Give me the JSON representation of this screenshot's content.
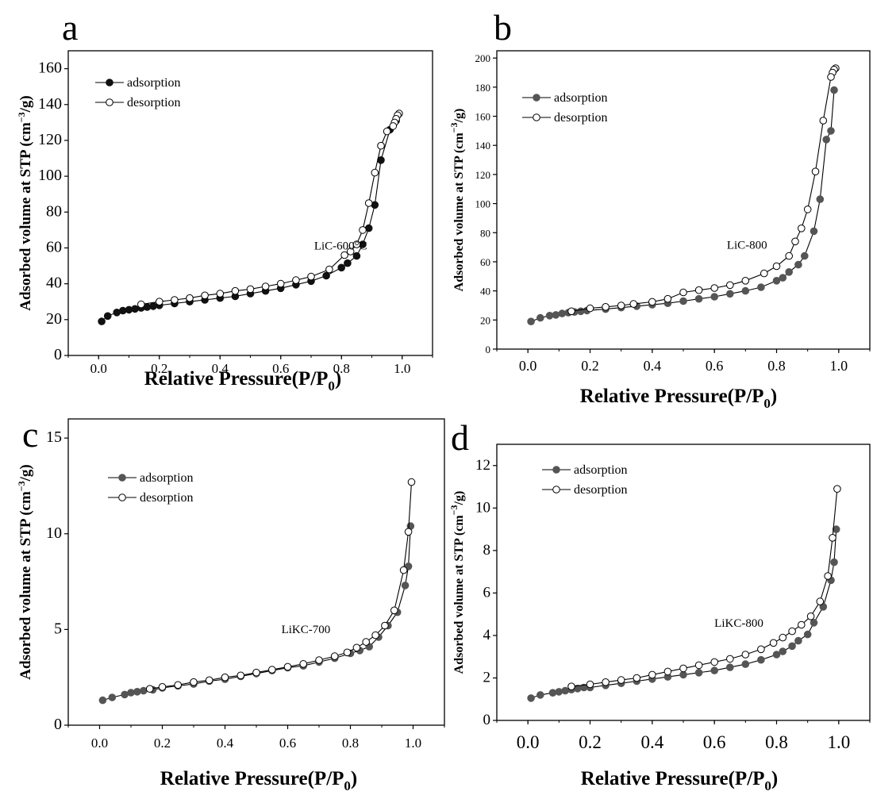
{
  "chart_data": [
    {
      "panel": "a",
      "type": "line",
      "xlabel_main": "Relative Pressure(P/P",
      "xlabel_sub": "0",
      "xlabel_end": ")",
      "ylabel_main": "Adsorbed volume at STP (cm",
      "ylabel_sup": "−3",
      "ylabel_end": "/g)",
      "xlim": [
        -0.1,
        1.1
      ],
      "ylim": [
        0,
        170
      ],
      "xticks": [
        0.0,
        0.2,
        0.4,
        0.6,
        0.8,
        1.0
      ],
      "yticks": [
        0,
        20,
        40,
        60,
        80,
        100,
        120,
        140,
        160
      ],
      "annotation": {
        "text": "LiC-600°C",
        "x": 0.71,
        "y": 59
      },
      "legend_position": "top-left",
      "adsorption_color": "#111111",
      "series": [
        {
          "name": "adsorption",
          "marker": "filled",
          "x": [
            0.01,
            0.03,
            0.06,
            0.08,
            0.1,
            0.12,
            0.14,
            0.16,
            0.18,
            0.2,
            0.25,
            0.3,
            0.35,
            0.4,
            0.45,
            0.5,
            0.55,
            0.6,
            0.65,
            0.7,
            0.75,
            0.8,
            0.82,
            0.85,
            0.87,
            0.89,
            0.91,
            0.93,
            0.96,
            0.98
          ],
          "y": [
            19,
            22,
            24,
            25,
            25.5,
            26,
            26.5,
            27,
            27.5,
            28,
            29,
            30,
            31,
            32,
            33,
            34.5,
            36,
            37.5,
            39.5,
            41.5,
            44.5,
            49,
            51.5,
            55.5,
            62,
            71,
            84,
            109,
            126,
            131
          ]
        },
        {
          "name": "desorption",
          "marker": "open",
          "x": [
            0.99,
            0.985,
            0.98,
            0.975,
            0.97,
            0.95,
            0.93,
            0.91,
            0.89,
            0.87,
            0.85,
            0.83,
            0.81,
            0.76,
            0.7,
            0.65,
            0.6,
            0.55,
            0.5,
            0.45,
            0.4,
            0.35,
            0.3,
            0.25,
            0.2,
            0.14
          ],
          "y": [
            135,
            134,
            132,
            130,
            128,
            125,
            117,
            102,
            85,
            70,
            62,
            58,
            56,
            48,
            44,
            42,
            40,
            38.5,
            37,
            36,
            34.5,
            33.5,
            32,
            31,
            30,
            28.5
          ]
        }
      ]
    },
    {
      "panel": "b",
      "type": "line",
      "xlabel_main": "Relative Pressure(P/P",
      "xlabel_sub": "0",
      "xlabel_end": ")",
      "ylabel_main": "Adsorbed volume at STP (cm",
      "ylabel_sup": "−3",
      "ylabel_end": "/g)",
      "xlim": [
        -0.1,
        1.1
      ],
      "ylim": [
        0,
        205
      ],
      "xticks": [
        0.0,
        0.2,
        0.4,
        0.6,
        0.8,
        1.0
      ],
      "yticks": [
        0,
        20,
        40,
        60,
        80,
        100,
        120,
        140,
        160,
        180,
        200
      ],
      "annotation": {
        "text": "LiC-800",
        "x": 0.64,
        "y": 69
      },
      "legend_position": "top-left",
      "adsorption_color": "#555555",
      "series": [
        {
          "name": "adsorption",
          "marker": "filled",
          "x": [
            0.01,
            0.04,
            0.07,
            0.09,
            0.11,
            0.13,
            0.15,
            0.17,
            0.19,
            0.25,
            0.3,
            0.35,
            0.4,
            0.45,
            0.5,
            0.55,
            0.6,
            0.65,
            0.7,
            0.75,
            0.8,
            0.82,
            0.84,
            0.87,
            0.89,
            0.92,
            0.94,
            0.96,
            0.975,
            0.985
          ],
          "y": [
            19,
            21.5,
            23,
            23.5,
            24.5,
            25,
            25.5,
            26,
            26.5,
            27.5,
            28.5,
            29.5,
            30.5,
            31.5,
            33,
            34.5,
            36,
            38,
            40,
            42.5,
            47,
            49,
            53,
            58,
            64,
            81,
            103,
            144,
            150,
            178
          ]
        },
        {
          "name": "desorption",
          "marker": "open",
          "x": [
            0.99,
            0.985,
            0.98,
            0.975,
            0.95,
            0.925,
            0.9,
            0.88,
            0.86,
            0.84,
            0.8,
            0.76,
            0.7,
            0.65,
            0.6,
            0.55,
            0.5,
            0.45,
            0.4,
            0.34,
            0.3,
            0.25,
            0.2,
            0.14
          ],
          "y": [
            193,
            192,
            190,
            187,
            157,
            122,
            96,
            83,
            74,
            64,
            57,
            52,
            47,
            44,
            42,
            40.5,
            39,
            34.5,
            32.5,
            31,
            30,
            29,
            28,
            26
          ]
        }
      ]
    },
    {
      "panel": "c",
      "type": "line",
      "xlabel_main": "Relative Pressure(P/P",
      "xlabel_sub": "0",
      "xlabel_end": ")",
      "ylabel_main": "Adsorbed volume at STP (cm",
      "ylabel_sup": "−3",
      "ylabel_end": "/g)",
      "xlim": [
        -0.1,
        1.1
      ],
      "ylim": [
        0,
        16
      ],
      "xticks": [
        0.0,
        0.2,
        0.4,
        0.6,
        0.8,
        1.0
      ],
      "yticks": [
        0,
        5,
        10,
        15
      ],
      "annotation": {
        "text": "LiKC-700",
        "x": 0.58,
        "y": 4.8
      },
      "legend_position": "top-left",
      "adsorption_color": "#555555",
      "series": [
        {
          "name": "adsorption",
          "marker": "filled",
          "x": [
            0.01,
            0.04,
            0.08,
            0.1,
            0.12,
            0.14,
            0.17,
            0.2,
            0.25,
            0.3,
            0.35,
            0.4,
            0.45,
            0.5,
            0.55,
            0.6,
            0.65,
            0.7,
            0.75,
            0.8,
            0.83,
            0.86,
            0.89,
            0.92,
            0.95,
            0.975,
            0.985,
            0.992
          ],
          "y": [
            1.3,
            1.45,
            1.6,
            1.7,
            1.75,
            1.8,
            1.85,
            1.95,
            2.05,
            2.15,
            2.3,
            2.4,
            2.55,
            2.7,
            2.85,
            3.0,
            3.1,
            3.3,
            3.5,
            3.75,
            3.9,
            4.1,
            4.6,
            5.2,
            5.9,
            7.3,
            8.3,
            10.4
          ]
        },
        {
          "name": "desorption",
          "marker": "open",
          "x": [
            0.995,
            0.985,
            0.97,
            0.94,
            0.91,
            0.88,
            0.85,
            0.82,
            0.79,
            0.75,
            0.7,
            0.65,
            0.6,
            0.55,
            0.5,
            0.45,
            0.4,
            0.35,
            0.3,
            0.25,
            0.2,
            0.16
          ],
          "y": [
            12.7,
            10.1,
            8.1,
            6.0,
            5.2,
            4.7,
            4.35,
            4.05,
            3.8,
            3.6,
            3.4,
            3.2,
            3.05,
            2.9,
            2.75,
            2.6,
            2.5,
            2.35,
            2.25,
            2.1,
            2.0,
            1.9
          ]
        }
      ]
    },
    {
      "panel": "d",
      "type": "line",
      "xlabel_main": "Relative Pressure(P/P",
      "xlabel_sub": "0",
      "xlabel_end": ")",
      "ylabel_main": "Adsorbed volume at STP (cm",
      "ylabel_sup": "−3",
      "ylabel_end": "/g)",
      "xlim": [
        -0.1,
        1.1
      ],
      "ylim": [
        0,
        13
      ],
      "xticks": [
        0.0,
        0.2,
        0.4,
        0.6,
        0.8,
        1.0
      ],
      "yticks": [
        0,
        2,
        4,
        6,
        8,
        10,
        12
      ],
      "annotation": {
        "text": "LiKC-800",
        "x": 0.6,
        "y": 4.4
      },
      "legend_position": "top-left",
      "adsorption_color": "#555555",
      "series": [
        {
          "name": "adsorption",
          "marker": "filled",
          "x": [
            0.01,
            0.04,
            0.08,
            0.1,
            0.12,
            0.14,
            0.16,
            0.18,
            0.2,
            0.25,
            0.3,
            0.35,
            0.4,
            0.45,
            0.5,
            0.55,
            0.6,
            0.65,
            0.7,
            0.75,
            0.8,
            0.82,
            0.85,
            0.87,
            0.9,
            0.92,
            0.95,
            0.975,
            0.985,
            0.992
          ],
          "y": [
            1.05,
            1.2,
            1.3,
            1.35,
            1.4,
            1.45,
            1.5,
            1.55,
            1.55,
            1.65,
            1.75,
            1.85,
            1.95,
            2.05,
            2.15,
            2.25,
            2.35,
            2.5,
            2.65,
            2.85,
            3.1,
            3.25,
            3.5,
            3.75,
            4.05,
            4.6,
            5.35,
            6.6,
            7.45,
            9.0
          ]
        },
        {
          "name": "desorption",
          "marker": "open",
          "x": [
            0.995,
            0.98,
            0.965,
            0.94,
            0.91,
            0.88,
            0.85,
            0.82,
            0.79,
            0.75,
            0.7,
            0.65,
            0.6,
            0.55,
            0.5,
            0.45,
            0.4,
            0.35,
            0.3,
            0.25,
            0.2,
            0.14
          ],
          "y": [
            10.9,
            8.6,
            6.8,
            5.6,
            4.9,
            4.5,
            4.2,
            3.9,
            3.65,
            3.35,
            3.1,
            2.9,
            2.75,
            2.6,
            2.45,
            2.3,
            2.15,
            2.0,
            1.9,
            1.8,
            1.7,
            1.6
          ]
        }
      ]
    }
  ]
}
